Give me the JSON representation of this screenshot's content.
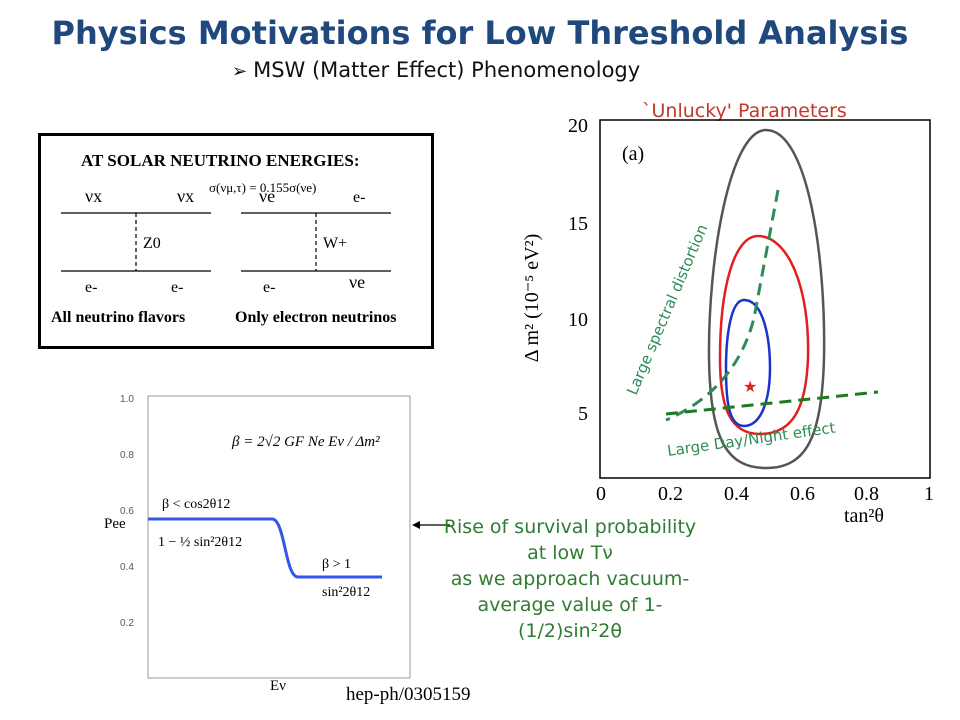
{
  "slide": {
    "title": "Physics Motivations for Low Threshold Analysis",
    "subtitle": "MSW (Matter Effect) Phenomenology",
    "subtitle_bullet": "➢"
  },
  "feynman": {
    "heading": "AT SOLAR NEUTRINO ENERGIES:",
    "cross_section": "σ(νμ,τ) = 0.155σ(νe)",
    "left": {
      "nu_in": "νx",
      "nu_out": "νx",
      "boson": "Z0",
      "e_in": "e-",
      "e_out": "e-",
      "caption": "All neutrino flavors"
    },
    "right": {
      "nu_in": "νe",
      "nu_out": "e-",
      "boson": "W+",
      "e_in": "e-",
      "e_out": "νe",
      "caption": "Only electron neutrinos"
    }
  },
  "survival_plot": {
    "y_ticks": [
      "1.0",
      "0.8",
      "0.6",
      "0.4",
      "0.2"
    ],
    "ylabel": "Pee",
    "xlabel": "Eν",
    "beta_formula": "β = 2√2 GF Ne Eν / Δm²",
    "low_cond": "β < cos2θ12",
    "low_value": "1 − ½ sin²2θ12",
    "high_cond": "β > 1",
    "high_value": "sin²2θ12",
    "reference": "hep-ph/0305159"
  },
  "rise_note": {
    "lines": [
      "Rise of survival probability",
      "at low Tν",
      "as we approach vacuum-",
      "average value of 1-",
      "(1/2)sin²2θ"
    ]
  },
  "contour_plot": {
    "label_a": "(a)",
    "ylabel": "Δ m² (10⁻⁵ eV²)",
    "xlabel": "tan²θ",
    "y_ticks": [
      "20",
      "15",
      "10",
      "5"
    ],
    "x_ticks": [
      "0",
      "0.2",
      "0.4",
      "0.6",
      "0.8",
      "1"
    ],
    "unlucky": "`Unlucky' Parameters",
    "spectral_label": "Large spectral distortion",
    "daynight_label": "Large Day/Night effect",
    "star": "★"
  },
  "colors": {
    "title": "#1f497d",
    "green": "#2e8b57",
    "red": "#e02020",
    "blue": "#1a33cc",
    "note_green": "#2e7d32",
    "unlucky_red": "#c0392b"
  }
}
